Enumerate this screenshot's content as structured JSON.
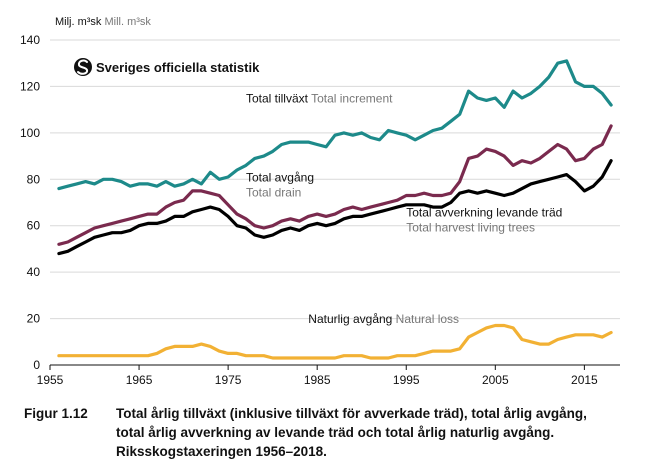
{
  "chart_data": {
    "type": "line",
    "y_unit_label": "Milj. m³sk",
    "y_unit_label_en": "Mill. m³sk",
    "logo_text": "Sveriges officiella statistik",
    "ylim": [
      0,
      140
    ],
    "xlim": [
      1955,
      2019
    ],
    "y_ticks": [
      0,
      20,
      40,
      60,
      80,
      100,
      120,
      140
    ],
    "x_ticks": [
      1955,
      1965,
      1975,
      1985,
      1995,
      2005,
      2015
    ],
    "grid": "horizontal",
    "x": [
      1956,
      1957,
      1958,
      1959,
      1960,
      1961,
      1962,
      1963,
      1964,
      1965,
      1966,
      1967,
      1968,
      1969,
      1970,
      1971,
      1972,
      1973,
      1974,
      1975,
      1976,
      1977,
      1978,
      1979,
      1980,
      1981,
      1982,
      1983,
      1984,
      1985,
      1986,
      1987,
      1988,
      1989,
      1990,
      1991,
      1992,
      1993,
      1994,
      1995,
      1996,
      1997,
      1998,
      1999,
      2000,
      2001,
      2002,
      2003,
      2004,
      2005,
      2006,
      2007,
      2008,
      2009,
      2010,
      2011,
      2012,
      2013,
      2014,
      2015,
      2016,
      2017,
      2018
    ],
    "series": [
      {
        "name": "Total tillväxt",
        "name_en": "Total increment",
        "color": "#1d8a8a",
        "values": [
          76,
          77,
          78,
          79,
          78,
          80,
          80,
          79,
          77,
          78,
          78,
          77,
          79,
          77,
          78,
          80,
          78,
          83,
          80,
          81,
          84,
          86,
          89,
          90,
          92,
          95,
          96,
          96,
          96,
          95,
          94,
          99,
          100,
          99,
          100,
          98,
          97,
          101,
          100,
          99,
          97,
          99,
          101,
          102,
          105,
          108,
          118,
          115,
          114,
          115,
          111,
          118,
          115,
          117,
          120,
          124,
          130,
          131,
          122,
          120,
          120,
          117,
          112
        ]
      },
      {
        "name": "Total avgång",
        "name_en": "Total drain",
        "color": "#7a2a4e",
        "values": [
          52,
          53,
          55,
          57,
          59,
          60,
          61,
          62,
          63,
          64,
          65,
          65,
          68,
          70,
          71,
          75,
          75,
          74,
          73,
          69,
          65,
          63,
          60,
          59,
          60,
          62,
          63,
          62,
          64,
          65,
          64,
          65,
          67,
          68,
          67,
          68,
          69,
          70,
          71,
          73,
          73,
          74,
          73,
          73,
          74,
          79,
          89,
          90,
          93,
          92,
          90,
          86,
          88,
          87,
          89,
          92,
          95,
          93,
          88,
          89,
          93,
          95,
          103
        ]
      },
      {
        "name": "Total avverkning levande träd",
        "name_en": "Total harvest living trees",
        "color": "#000000",
        "values": [
          48,
          49,
          51,
          53,
          55,
          56,
          57,
          57,
          58,
          60,
          61,
          61,
          62,
          64,
          64,
          66,
          67,
          68,
          67,
          64,
          60,
          59,
          56,
          55,
          56,
          58,
          59,
          58,
          60,
          61,
          60,
          61,
          63,
          64,
          64,
          65,
          66,
          67,
          68,
          69,
          69,
          69,
          68,
          68,
          70,
          74,
          75,
          74,
          75,
          74,
          73,
          74,
          76,
          78,
          79,
          80,
          81,
          82,
          79,
          75,
          77,
          81,
          88
        ]
      },
      {
        "name": "Naturlig avgång",
        "name_en": "Natural loss",
        "color": "#f2b134",
        "values": [
          4,
          4,
          4,
          4,
          4,
          4,
          4,
          4,
          4,
          4,
          4,
          5,
          7,
          8,
          8,
          8,
          9,
          8,
          6,
          5,
          5,
          4,
          4,
          4,
          3,
          3,
          3,
          3,
          3,
          3,
          3,
          3,
          4,
          4,
          4,
          3,
          3,
          3,
          4,
          4,
          4,
          5,
          6,
          6,
          6,
          7,
          12,
          14,
          16,
          17,
          17,
          16,
          11,
          10,
          9,
          9,
          11,
          12,
          13,
          13,
          13,
          12,
          14
        ]
      }
    ]
  },
  "caption": {
    "label": "Figur 1.12",
    "lines": [
      "Total årlig tillväxt (inklusive tillväxt för avverkade träd), total årlig avgång,",
      "total årlig avverkning av levande träd och total årlig naturlig avgång.",
      "Riksskogstaxeringen 1956–2018."
    ]
  }
}
